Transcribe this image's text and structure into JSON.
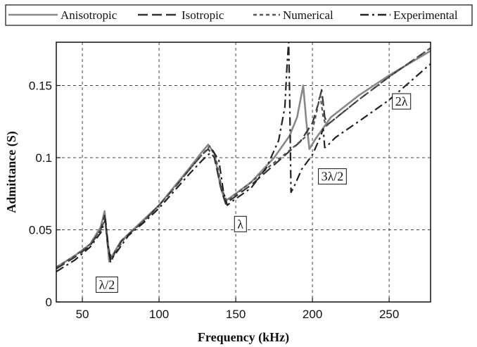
{
  "chart_data": {
    "type": "line",
    "title": "",
    "xlabel": "Frequency (kHz)",
    "ylabel": "Admittance (S)",
    "xlim": [
      33,
      277
    ],
    "ylim": [
      0,
      0.18
    ],
    "xticks": [
      50,
      100,
      150,
      200,
      250
    ],
    "yticks": [
      0,
      0.05,
      0.1,
      0.15
    ],
    "ytick_labels": [
      "0",
      "0.05",
      "0.1",
      "0.15"
    ],
    "grid": true,
    "legend_position": "top (outside plot, framed)",
    "series": [
      {
        "name": "Anisotropic",
        "color": "#888888",
        "dash": "solid",
        "points": [
          [
            33,
            0.024
          ],
          [
            45,
            0.032
          ],
          [
            55,
            0.04
          ],
          [
            62,
            0.052
          ],
          [
            64.5,
            0.063
          ],
          [
            66,
            0.045
          ],
          [
            67.5,
            0.028
          ],
          [
            70,
            0.033
          ],
          [
            75,
            0.042
          ],
          [
            90,
            0.057
          ],
          [
            100,
            0.067
          ],
          [
            110,
            0.08
          ],
          [
            120,
            0.093
          ],
          [
            128,
            0.104
          ],
          [
            132,
            0.109
          ],
          [
            136,
            0.103
          ],
          [
            140,
            0.08
          ],
          [
            143,
            0.07
          ],
          [
            146,
            0.072
          ],
          [
            160,
            0.083
          ],
          [
            175,
            0.1
          ],
          [
            185,
            0.115
          ],
          [
            190,
            0.128
          ],
          [
            194,
            0.15
          ],
          [
            196,
            0.125
          ],
          [
            198,
            0.106
          ],
          [
            202,
            0.113
          ],
          [
            212,
            0.128
          ],
          [
            230,
            0.143
          ],
          [
            250,
            0.157
          ],
          [
            277,
            0.174
          ]
        ]
      },
      {
        "name": "Isotropic",
        "color": "#333333",
        "dash": "long-dash",
        "points": [
          [
            33,
            0.023
          ],
          [
            45,
            0.031
          ],
          [
            55,
            0.039
          ],
          [
            62,
            0.05
          ],
          [
            64.5,
            0.06
          ],
          [
            66.5,
            0.04
          ],
          [
            68.5,
            0.027
          ],
          [
            71,
            0.034
          ],
          [
            76,
            0.043
          ],
          [
            90,
            0.056
          ],
          [
            100,
            0.067
          ],
          [
            110,
            0.079
          ],
          [
            120,
            0.092
          ],
          [
            128,
            0.102
          ],
          [
            132,
            0.106
          ],
          [
            136,
            0.1
          ],
          [
            141,
            0.076
          ],
          [
            143.5,
            0.068
          ],
          [
            147,
            0.071
          ],
          [
            160,
            0.081
          ],
          [
            175,
            0.095
          ],
          [
            192,
            0.111
          ],
          [
            200,
            0.124
          ],
          [
            204,
            0.138
          ],
          [
            206,
            0.147
          ],
          [
            208,
            0.128
          ],
          [
            210,
            0.123
          ],
          [
            230,
            0.14
          ],
          [
            250,
            0.156
          ],
          [
            277,
            0.176
          ]
        ]
      },
      {
        "name": "Numerical",
        "color": "#555555",
        "dash": "short-dash",
        "points": [
          [
            33,
            0.024
          ],
          [
            45,
            0.032
          ],
          [
            55,
            0.04
          ],
          [
            62,
            0.05
          ],
          [
            65,
            0.058
          ],
          [
            67,
            0.038
          ],
          [
            69,
            0.03
          ],
          [
            72,
            0.035
          ],
          [
            78,
            0.045
          ],
          [
            90,
            0.056
          ],
          [
            100,
            0.067
          ],
          [
            110,
            0.079
          ],
          [
            120,
            0.092
          ],
          [
            128,
            0.102
          ],
          [
            133,
            0.108
          ],
          [
            137,
            0.1
          ],
          [
            141,
            0.078
          ],
          [
            144,
            0.07
          ],
          [
            147,
            0.072
          ],
          [
            160,
            0.083
          ],
          [
            172,
            0.094
          ],
          [
            185,
            0.105
          ],
          [
            195,
            0.114
          ],
          [
            200,
            0.119
          ],
          [
            203,
            0.133
          ],
          [
            205,
            0.144
          ],
          [
            207,
            0.128
          ],
          [
            209,
            0.122
          ],
          [
            230,
            0.14
          ],
          [
            250,
            0.156
          ],
          [
            277,
            0.176
          ]
        ]
      },
      {
        "name": "Experimental",
        "color": "#222222",
        "dash": "dash-dot",
        "points": [
          [
            33,
            0.021
          ],
          [
            45,
            0.029
          ],
          [
            55,
            0.038
          ],
          [
            62,
            0.048
          ],
          [
            65,
            0.057
          ],
          [
            67,
            0.038
          ],
          [
            68.5,
            0.029
          ],
          [
            72,
            0.034
          ],
          [
            80,
            0.046
          ],
          [
            90,
            0.055
          ],
          [
            100,
            0.065
          ],
          [
            110,
            0.077
          ],
          [
            120,
            0.089
          ],
          [
            128,
            0.098
          ],
          [
            132,
            0.102
          ],
          [
            135,
            0.105
          ],
          [
            139,
            0.098
          ],
          [
            142,
            0.076
          ],
          [
            144.5,
            0.067
          ],
          [
            148,
            0.07
          ],
          [
            160,
            0.079
          ],
          [
            170,
            0.093
          ],
          [
            178,
            0.112
          ],
          [
            182,
            0.135
          ],
          [
            183.5,
            0.165
          ],
          [
            184.5,
            0.18
          ],
          [
            185.2,
            0.14
          ],
          [
            186,
            0.076
          ],
          [
            188,
            0.08
          ],
          [
            193,
            0.092
          ],
          [
            200,
            0.102
          ],
          [
            205,
            0.114
          ],
          [
            207,
            0.12
          ],
          [
            208,
            0.107
          ],
          [
            209.5,
            0.108
          ],
          [
            215,
            0.114
          ],
          [
            230,
            0.125
          ],
          [
            250,
            0.14
          ],
          [
            277,
            0.165
          ]
        ]
      }
    ],
    "annotations": [
      {
        "text": "λ/2",
        "x": 66,
        "y": 0.012
      },
      {
        "text": "λ",
        "x": 153,
        "y": 0.054
      },
      {
        "text": "3λ/2",
        "x": 213,
        "y": 0.087
      },
      {
        "text": "2λ",
        "x": 258,
        "y": 0.139
      }
    ]
  }
}
